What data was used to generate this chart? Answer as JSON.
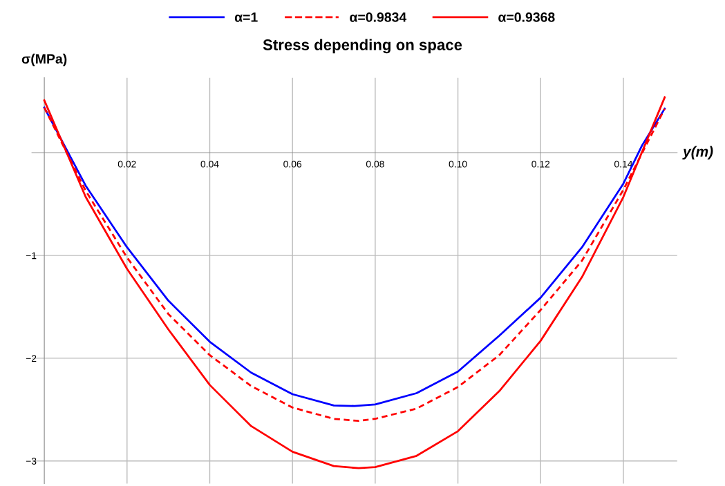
{
  "chart_data": {
    "type": "line",
    "title": "Stress depending on space",
    "xlabel": "y(m)",
    "ylabel": "σ(MPa)",
    "xlim": [
      -0.003,
      0.153
    ],
    "ylim": [
      -3.22,
      0.73
    ],
    "xticks": [
      {
        "value": 0.02,
        "label": "0.02"
      },
      {
        "value": 0.04,
        "label": "0.04"
      },
      {
        "value": 0.06,
        "label": "0.06"
      },
      {
        "value": 0.08,
        "label": "0.08"
      },
      {
        "value": 0.1,
        "label": "0.10"
      },
      {
        "value": 0.12,
        "label": "0.12"
      },
      {
        "value": 0.14,
        "label": "0.14"
      }
    ],
    "yticks": [
      {
        "value": -3,
        "label": "−3"
      },
      {
        "value": -2,
        "label": "−2"
      },
      {
        "value": -1,
        "label": "−1"
      }
    ],
    "grid": true,
    "legend": "top",
    "marker": "none",
    "x": [
      0,
      0.01,
      0.02,
      0.03,
      0.04,
      0.05,
      0.06,
      0.07,
      0.076,
      0.08,
      0.09,
      0.1,
      0.11,
      0.12,
      0.13,
      0.14,
      0.15
    ],
    "series": [
      {
        "name": "α=1",
        "color": "#0000ff",
        "line_style": "solid",
        "x": [
          0,
          0.01,
          0.02,
          0.03,
          0.04,
          0.05,
          0.06,
          0.07,
          0.075,
          0.08,
          0.09,
          0.1,
          0.11,
          0.12,
          0.13,
          0.14,
          0.1445,
          0.15
        ],
        "values": [
          0.44,
          -0.32,
          -0.92,
          -1.44,
          -1.84,
          -2.14,
          -2.35,
          -2.46,
          -2.465,
          -2.45,
          -2.34,
          -2.13,
          -1.78,
          -1.41,
          -0.92,
          -0.3,
          0.07,
          0.43
        ]
      },
      {
        "name": "α=0.9834",
        "color": "#ff0000",
        "line_style": "dashed",
        "values": [
          0.44,
          -0.37,
          -1.02,
          -1.57,
          -1.97,
          -2.27,
          -2.48,
          -2.59,
          -2.61,
          -2.59,
          -2.49,
          -2.28,
          -1.97,
          -1.53,
          -1.05,
          -0.36,
          0.43
        ]
      },
      {
        "name": "α=0.9368",
        "color": "#ff0000",
        "line_style": "solid",
        "values": [
          0.51,
          -0.43,
          -1.13,
          -1.72,
          -2.26,
          -2.66,
          -2.91,
          -3.05,
          -3.07,
          -3.06,
          -2.95,
          -2.71,
          -2.32,
          -1.83,
          -1.21,
          -0.43,
          0.54
        ]
      }
    ]
  }
}
